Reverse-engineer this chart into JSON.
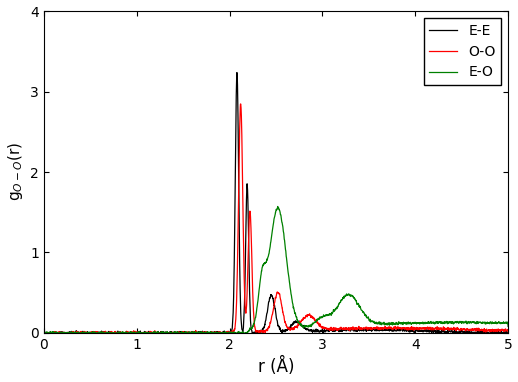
{
  "title": "",
  "xlabel": "r (Å)",
  "ylabel": "g$_{O-O}$(r)",
  "xlim": [
    0,
    5
  ],
  "ylim": [
    0,
    4
  ],
  "xticks": [
    0,
    1,
    2,
    3,
    4,
    5
  ],
  "yticks": [
    0,
    1,
    2,
    3,
    4
  ],
  "legend_labels": [
    "E-E",
    "O-O",
    "E-O"
  ],
  "legend_colors": [
    "black",
    "red",
    "green"
  ],
  "bg_color": "#ffffff",
  "line_width": 0.9
}
